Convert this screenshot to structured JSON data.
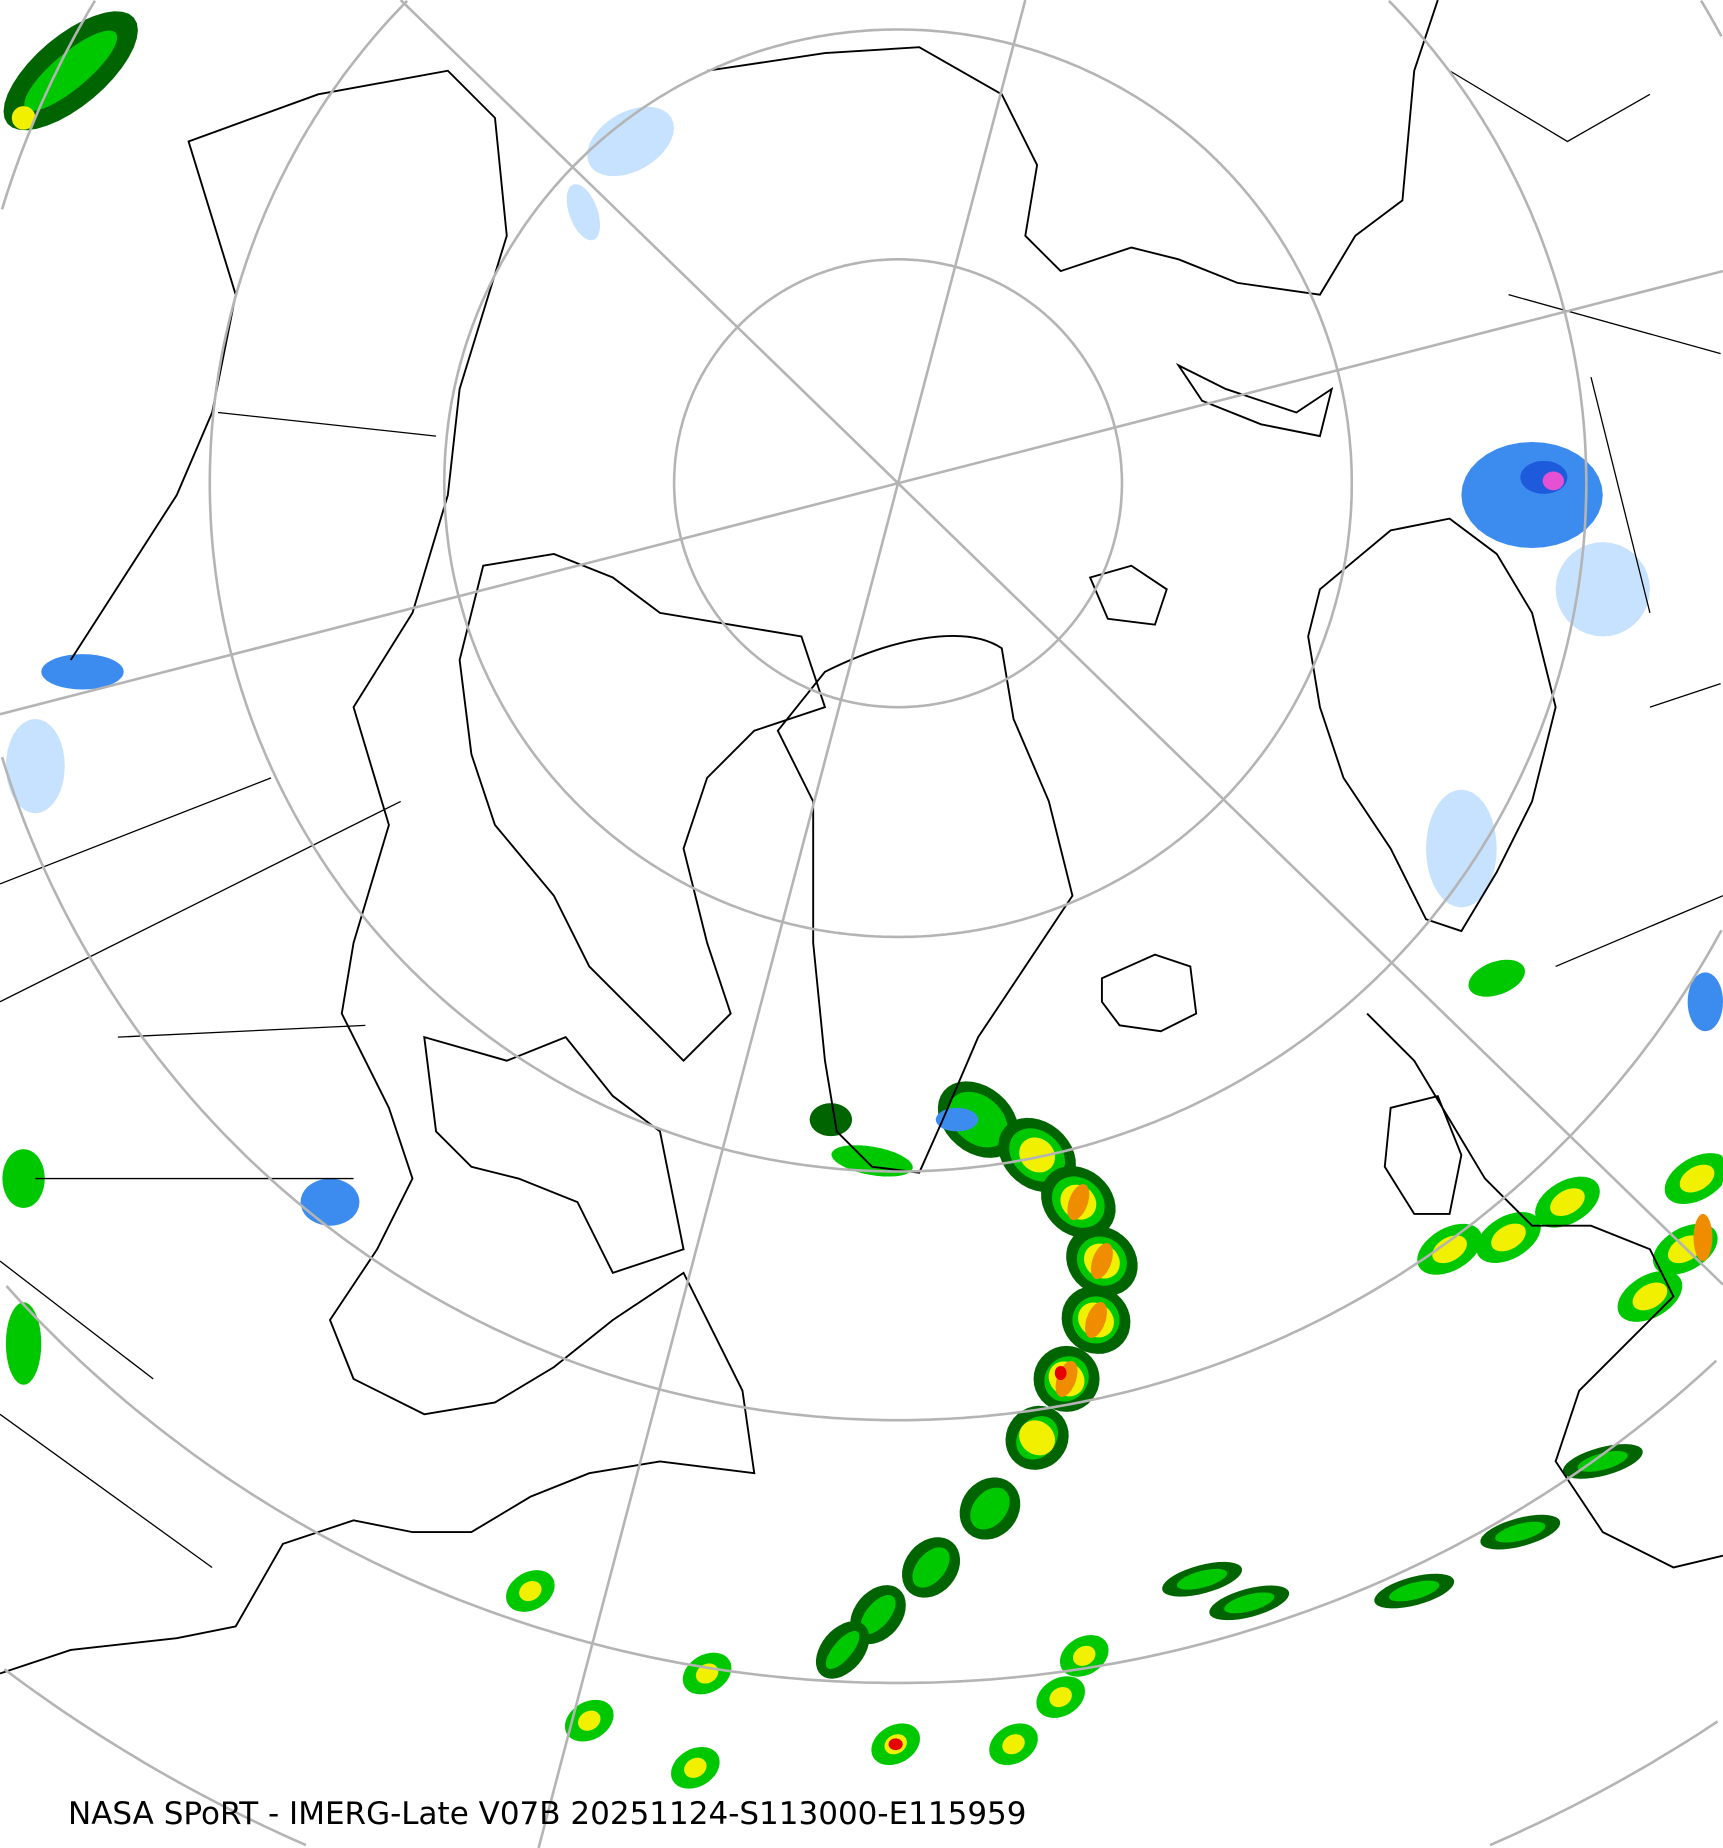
{
  "caption": "NASA SPoRT - IMERG-Late V07B 20251124-S113000-E115959",
  "colors": {
    "graticule": "#b4b4b4",
    "coastline": "#000000",
    "precip_light": "#c6e2ff",
    "precip_blue": "#3c8cf0",
    "precip_darkblue": "#1e5adc",
    "precip_magenta": "#e650d2",
    "precip_darkgreen": "#006400",
    "precip_green": "#00c800",
    "precip_yellow": "#f0f000",
    "precip_orange": "#f08c00",
    "precip_red": "#e60000"
  },
  "projection": "north-polar-stereographic"
}
